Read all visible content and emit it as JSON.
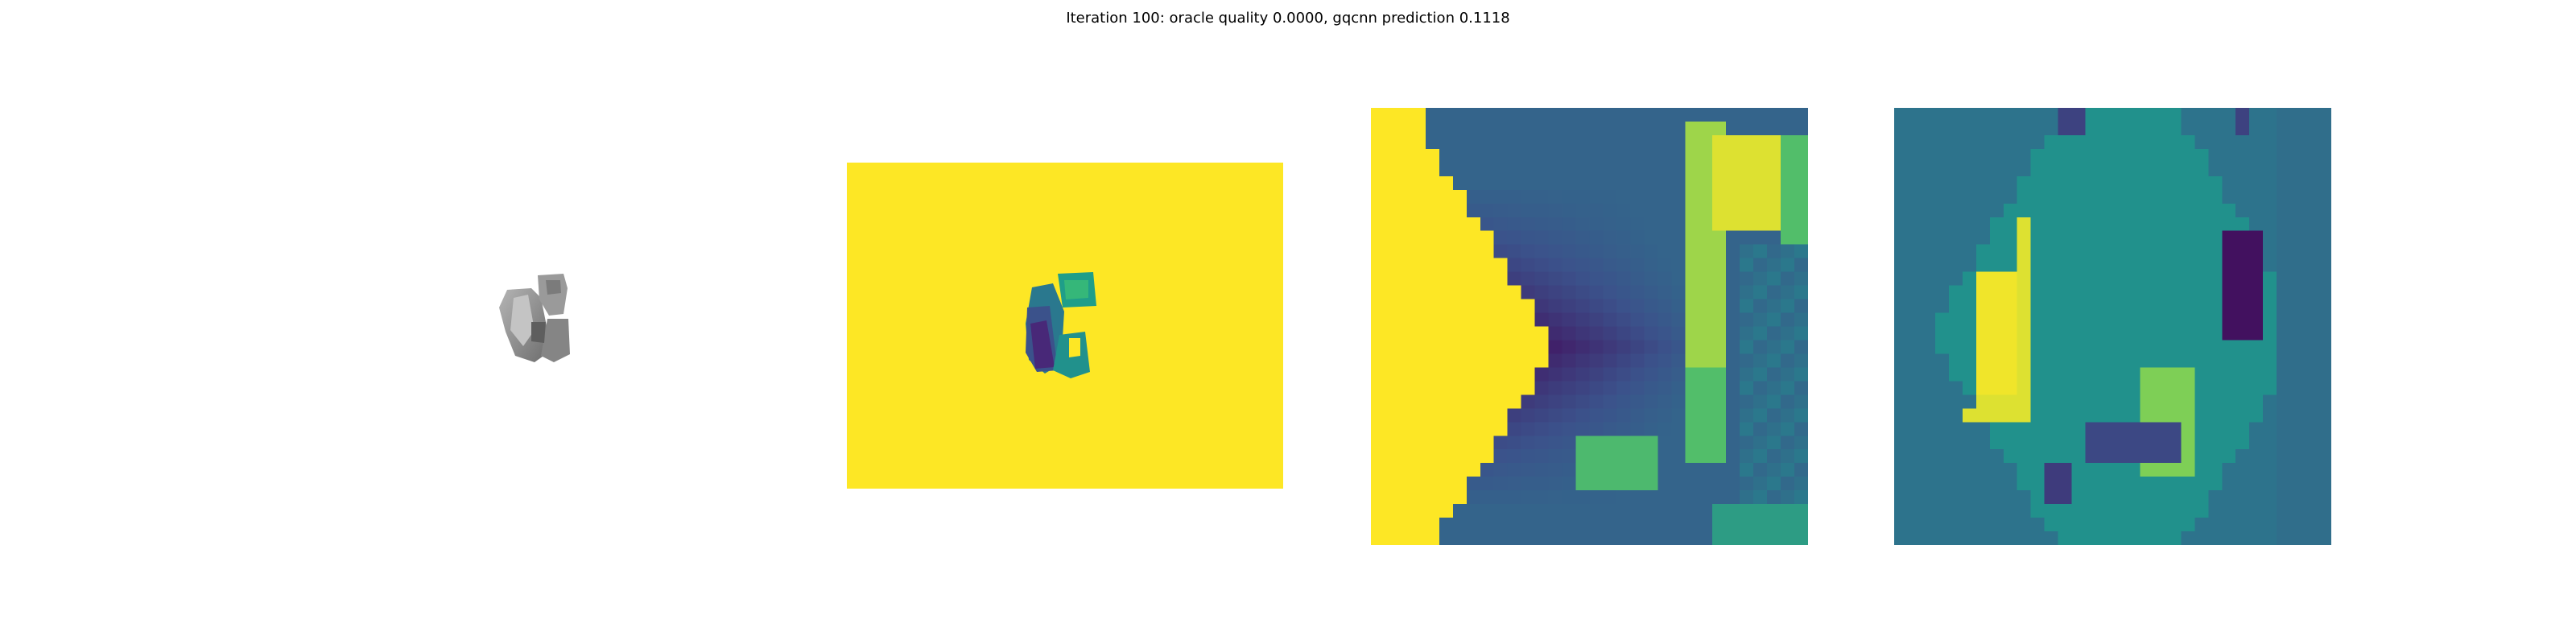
{
  "figure": {
    "title": "Iteration 100: oracle quality 0.0000, gqcnn prediction 0.1118"
  },
  "panels": [
    {
      "kind": "rendered-object",
      "colormap": "gray"
    },
    {
      "kind": "depth-image",
      "colormap": "viridis"
    },
    {
      "kind": "depth-crop",
      "colormap": "viridis"
    },
    {
      "kind": "depth-crop-transformed",
      "colormap": "viridis"
    }
  ],
  "colors": {
    "viridis_low": "#440154",
    "viridis_mid": "#21918c",
    "viridis_high": "#fde725",
    "object_gray": "#8a8a8a"
  }
}
